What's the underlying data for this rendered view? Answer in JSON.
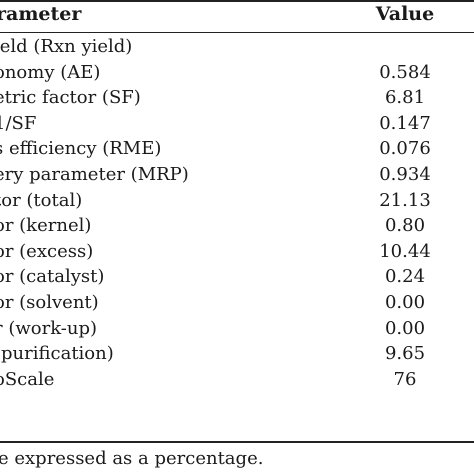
{
  "table": {
    "header": {
      "parameter": "rameter",
      "value": "Value"
    },
    "rows": [
      {
        "parameter": "ield (Rxn yield)",
        "value": ""
      },
      {
        "parameter": "onomy (AE)",
        "value": "0.584"
      },
      {
        "parameter": "etric factor (SF)",
        "value": "6.81"
      },
      {
        "parameter": "1/SF",
        "value": "0.147"
      },
      {
        "parameter": "s efficiency (RME)",
        "value": "0.076"
      },
      {
        "parameter": "ery parameter (MRP)",
        "value": "0.934"
      },
      {
        "parameter": "tor (total)",
        "value": "21.13"
      },
      {
        "parameter": "or (kernel)",
        "value": "0.80"
      },
      {
        "parameter": "or (excess)",
        "value": "10.44"
      },
      {
        "parameter": "or (catalyst)",
        "value": "0.24"
      },
      {
        "parameter": "or (solvent)",
        "value": "0.00"
      },
      {
        "parameter": "r (work-up)",
        "value": "0.00"
      },
      {
        "parameter": "(purification)",
        "value": "9.65"
      },
      {
        "parameter": "oScale",
        "value": "76"
      }
    ]
  },
  "footnote": "e expressed as a percentage."
}
